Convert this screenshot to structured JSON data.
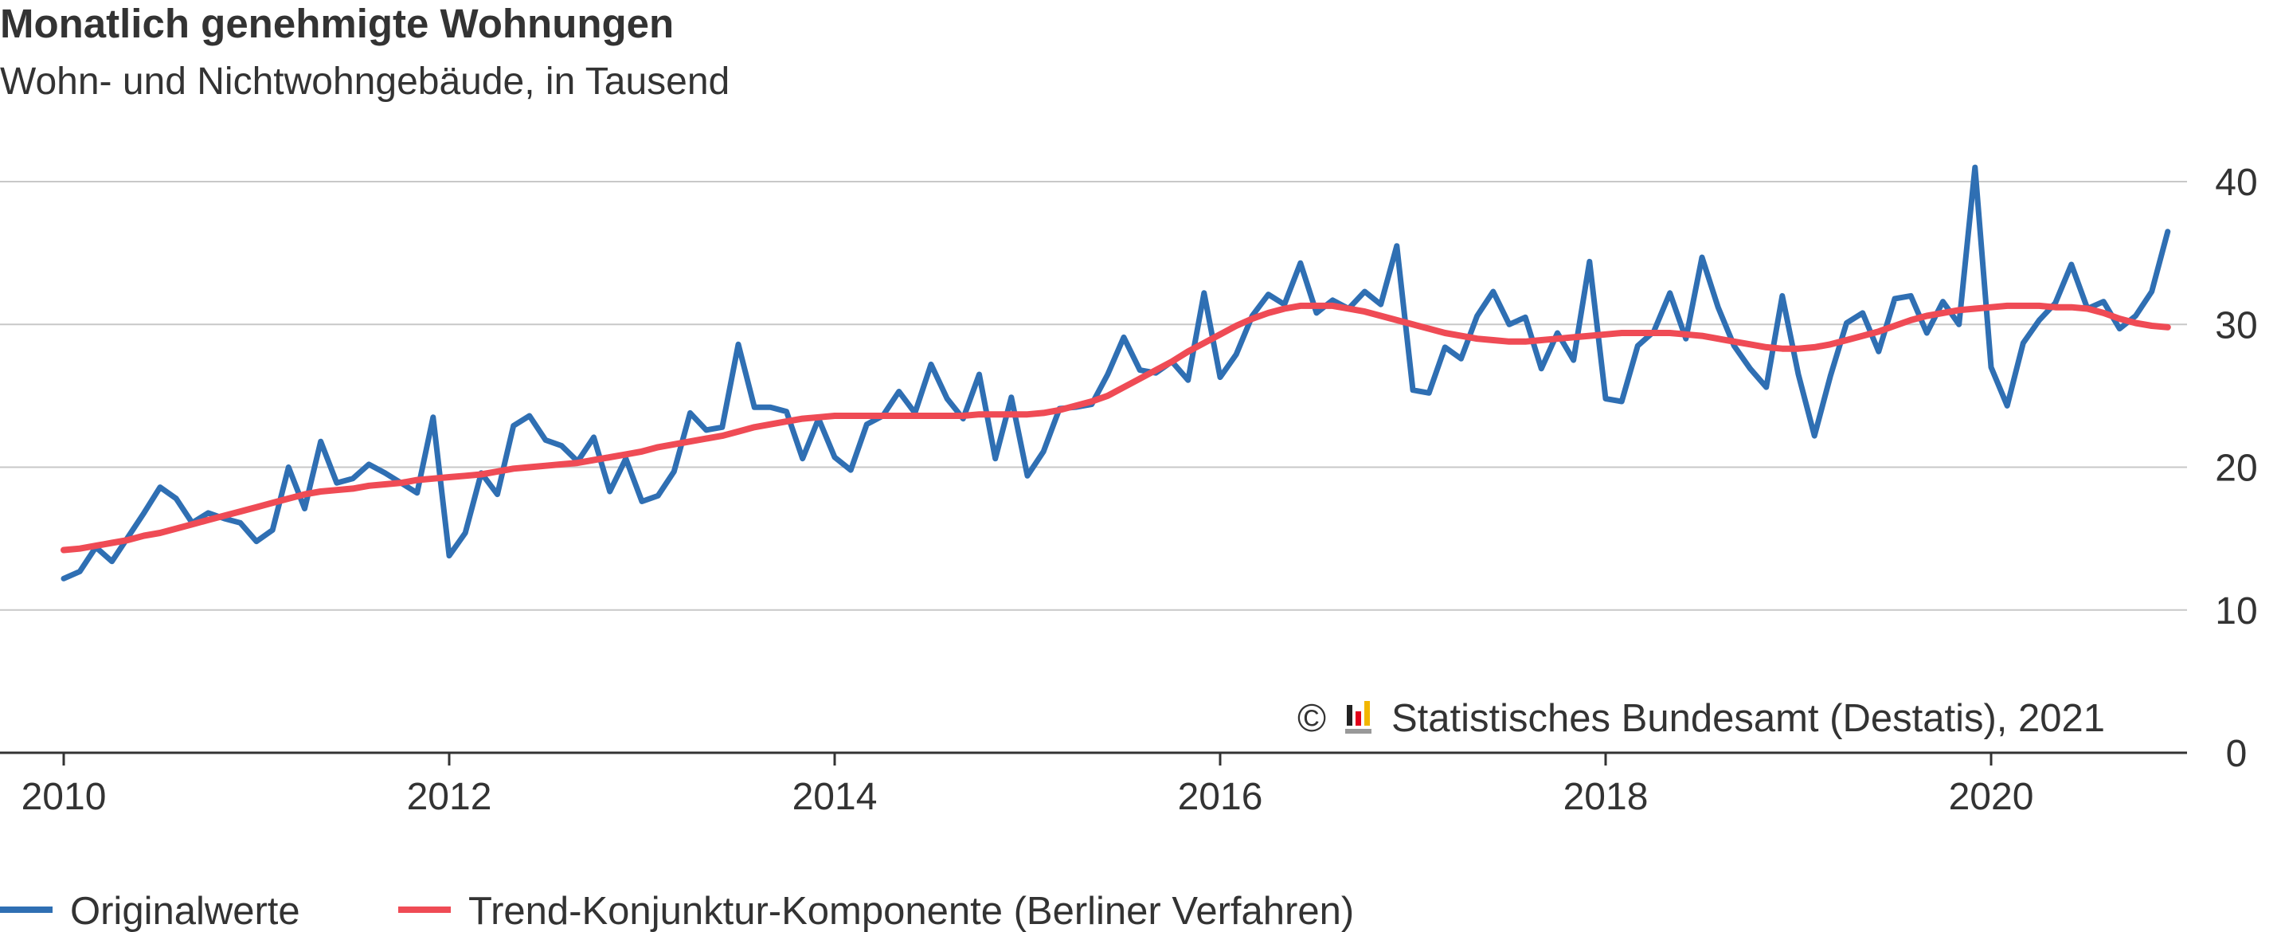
{
  "chart_data": {
    "type": "line",
    "title": "Monatlich genehmigte Wohnungen",
    "subtitle": "Wohn- und Nichtwohngebäude, in Tausend",
    "x_start": "2010-01",
    "frequency": "monthly",
    "x_tick_labels": [
      "2010",
      "2012",
      "2014",
      "2016",
      "2018",
      "2020"
    ],
    "y_tick_labels": [
      "0",
      "10",
      "20",
      "30",
      "40"
    ],
    "ylim": [
      0,
      40
    ],
    "xlim": [
      "2010-01",
      "2021-01"
    ],
    "grid": "horizontal",
    "y_axis_side": "right",
    "legend_position": "bottom-left",
    "series": [
      {
        "name": "Originalwerte",
        "color": "#2f6fb3",
        "values": [
          12.2,
          12.7,
          14.4,
          13.4,
          15.1,
          16.8,
          18.6,
          17.8,
          16.1,
          16.8,
          16.4,
          16.1,
          14.8,
          15.6,
          20.0,
          17.1,
          21.8,
          18.9,
          19.2,
          20.2,
          19.6,
          18.9,
          18.2,
          23.5,
          13.8,
          15.4,
          19.6,
          18.1,
          22.9,
          23.6,
          21.9,
          21.5,
          20.4,
          22.1,
          18.3,
          20.6,
          17.6,
          18.0,
          19.7,
          23.8,
          22.6,
          22.8,
          28.6,
          24.2,
          24.2,
          23.9,
          20.6,
          23.4,
          20.7,
          19.8,
          23.0,
          23.6,
          25.3,
          23.8,
          27.2,
          24.8,
          23.4,
          26.5,
          20.6,
          24.9,
          19.4,
          21.1,
          24.1,
          24.2,
          24.4,
          26.5,
          29.1,
          26.8,
          26.6,
          27.4,
          26.1,
          32.2,
          26.3,
          27.9,
          30.6,
          32.1,
          31.4,
          34.3,
          30.8,
          31.7,
          31.1,
          32.3,
          31.4,
          35.5,
          25.4,
          25.2,
          28.4,
          27.6,
          30.6,
          32.3,
          30.0,
          30.5,
          26.9,
          29.4,
          27.5,
          34.4,
          24.8,
          24.6,
          28.5,
          29.5,
          32.2,
          29.0,
          34.7,
          31.2,
          28.5,
          26.9,
          25.6,
          32.0,
          26.5,
          22.2,
          26.4,
          30.1,
          30.8,
          28.1,
          31.8,
          32.0,
          29.4,
          31.6,
          30.0,
          41.0,
          27.0,
          24.3,
          28.7,
          30.3,
          31.5,
          34.2,
          31.1,
          31.6,
          29.7,
          30.6,
          32.3,
          36.5
        ]
      },
      {
        "name": "Trend-Konjunktur-Komponente (Berliner Verfahren)",
        "color": "#ef4b55",
        "values": [
          14.2,
          14.3,
          14.5,
          14.7,
          14.9,
          15.2,
          15.4,
          15.7,
          16.0,
          16.3,
          16.6,
          16.9,
          17.2,
          17.5,
          17.8,
          18.1,
          18.3,
          18.4,
          18.5,
          18.7,
          18.8,
          18.9,
          19.1,
          19.2,
          19.3,
          19.4,
          19.5,
          19.7,
          19.9,
          20.0,
          20.1,
          20.2,
          20.3,
          20.5,
          20.7,
          20.9,
          21.1,
          21.4,
          21.6,
          21.8,
          22.0,
          22.2,
          22.5,
          22.8,
          23.0,
          23.2,
          23.4,
          23.5,
          23.6,
          23.6,
          23.6,
          23.6,
          23.6,
          23.6,
          23.6,
          23.6,
          23.6,
          23.7,
          23.7,
          23.7,
          23.7,
          23.8,
          24.0,
          24.3,
          24.6,
          25.0,
          25.6,
          26.2,
          26.8,
          27.4,
          28.1,
          28.7,
          29.3,
          29.9,
          30.4,
          30.8,
          31.1,
          31.3,
          31.3,
          31.3,
          31.1,
          30.9,
          30.6,
          30.3,
          30.0,
          29.7,
          29.4,
          29.2,
          29.0,
          28.9,
          28.8,
          28.8,
          28.9,
          29.0,
          29.1,
          29.2,
          29.3,
          29.4,
          29.4,
          29.4,
          29.4,
          29.3,
          29.2,
          29.0,
          28.8,
          28.6,
          28.4,
          28.3,
          28.3,
          28.4,
          28.6,
          28.9,
          29.2,
          29.5,
          29.9,
          30.3,
          30.6,
          30.8,
          31.0,
          31.1,
          31.2,
          31.3,
          31.3,
          31.3,
          31.2,
          31.2,
          31.1,
          30.8,
          30.4,
          30.1,
          29.9,
          29.8
        ]
      }
    ]
  },
  "source": {
    "copyright_symbol": "©",
    "text": "Statistisches Bundesamt (Destatis), 2021",
    "logo_colors": [
      "#222222",
      "#e2001a",
      "#f2b600"
    ]
  }
}
